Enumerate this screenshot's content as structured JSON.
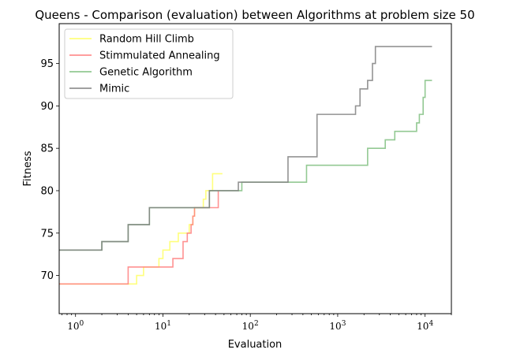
{
  "chart_data": {
    "type": "line",
    "title": "Queens - Comparison (evaluation) between Algorithms at problem size 50",
    "xlabel": "Evaluation",
    "ylabel": "Fitness",
    "xscale": "log",
    "xlim": [
      0.65,
      20000
    ],
    "ylim": [
      65.5,
      99.7
    ],
    "x_ticks": [
      {
        "value": 1,
        "base": "10",
        "exp": "0"
      },
      {
        "value": 10,
        "base": "10",
        "exp": "1"
      },
      {
        "value": 100,
        "base": "10",
        "exp": "2"
      },
      {
        "value": 1000,
        "base": "10",
        "exp": "3"
      },
      {
        "value": 10000,
        "base": "10",
        "exp": "4"
      }
    ],
    "y_ticks": [
      "70",
      "75",
      "80",
      "85",
      "90",
      "95"
    ],
    "grid": false,
    "legend_position": "top-left",
    "series": [
      {
        "name": "Random Hill Climb",
        "color": "#ffff66",
        "x": [
          0.65,
          3,
          4,
          5,
          6,
          7,
          8,
          9,
          10,
          11,
          12,
          15,
          17,
          19,
          20,
          22,
          23,
          25,
          27,
          29,
          31,
          33,
          34,
          37,
          48
        ],
        "y": [
          69,
          69,
          69,
          70,
          71,
          71,
          71,
          72,
          73,
          73,
          74,
          75,
          75,
          75,
          76,
          77,
          78,
          78,
          78,
          79,
          80,
          80,
          80,
          82,
          82
        ]
      },
      {
        "name": "Stimmulated Annealing",
        "color": "#ff7f7f",
        "x": [
          0.65,
          3,
          4,
          6,
          10,
          12,
          13,
          15,
          17,
          19,
          21,
          22,
          23,
          25,
          30,
          35,
          40,
          43
        ],
        "y": [
          69,
          69,
          71,
          71,
          71,
          71,
          72,
          72,
          74,
          75,
          76,
          77,
          78,
          78,
          78,
          78,
          78,
          80
        ]
      },
      {
        "name": "Genetic Algorithm",
        "color": "#80c080",
        "x": [
          0.65,
          1,
          2,
          3,
          4,
          5,
          7,
          10,
          20,
          34,
          40,
          73,
          80,
          100,
          270,
          300,
          440,
          500,
          1000,
          2200,
          2500,
          3500,
          4500,
          5000,
          8000,
          8200,
          8600,
          9000,
          9500,
          10000,
          12000
        ],
        "y": [
          73,
          73,
          74,
          74,
          76,
          76,
          78,
          78,
          78,
          80,
          80,
          80,
          81,
          81,
          81,
          81,
          83,
          83,
          83,
          85,
          85,
          86,
          87,
          87,
          88,
          88,
          89,
          89,
          91,
          93,
          93
        ]
      },
      {
        "name": "Mimic",
        "color": "#808080",
        "x": [
          0.65,
          1,
          2,
          3,
          4,
          5,
          7,
          10,
          20,
          34,
          73,
          100,
          270,
          400,
          580,
          600,
          1000,
          1600,
          1700,
          1800,
          2000,
          2200,
          2300,
          2500,
          2600,
          2700,
          3000,
          5000,
          8000,
          10000,
          12000
        ],
        "y": [
          73,
          73,
          74,
          74,
          76,
          76,
          78,
          78,
          78,
          80,
          81,
          81,
          84,
          84,
          89,
          89,
          89,
          90,
          90,
          92,
          92,
          93,
          93,
          95,
          95,
          97,
          97,
          97,
          97,
          97,
          97
        ]
      }
    ]
  }
}
